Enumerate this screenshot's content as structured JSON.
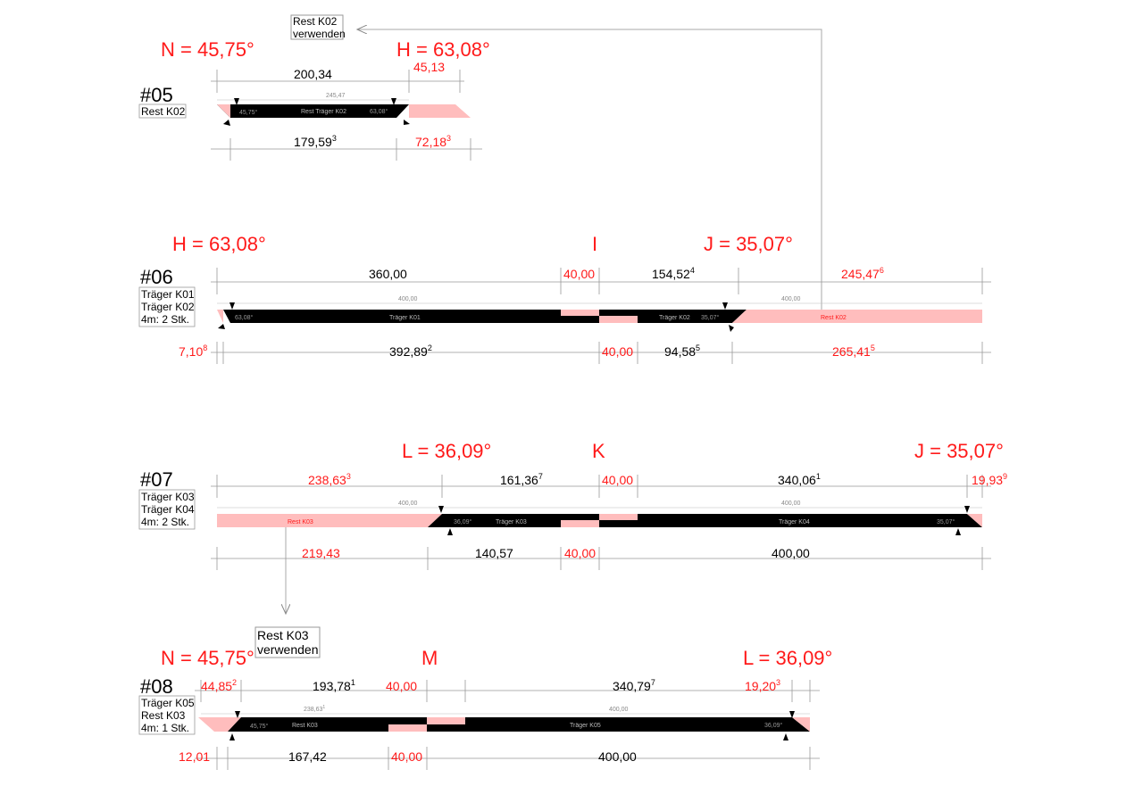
{
  "colors": {
    "red": "#ff1a1a",
    "pink": "#ffbdbd",
    "black": "#000000",
    "grey": "#999999"
  },
  "notes": {
    "k02_line1": "Rest K02",
    "k02_line2": "verwenden",
    "k03_line1": "Rest K03",
    "k03_line2": "verwenden"
  },
  "s05": {
    "num": "#05",
    "labels": [
      "Rest K02"
    ],
    "angle_n": "N = 45,75°",
    "angle_h": "H = 63,08°",
    "top": {
      "d1": "200,34",
      "d2": "45,13"
    },
    "bottom": {
      "d1": "179,59",
      "d1s": "3",
      "d2": "72,18",
      "d2s": "3"
    },
    "bar": {
      "len": "245,47",
      "name": "Rest Träger K02",
      "a_left": "45,75°",
      "a_right": "63,08°"
    }
  },
  "s06": {
    "num": "#06",
    "labels": [
      "Träger K01",
      "Träger K02",
      "4m: 2 Stk."
    ],
    "angle_h": "H = 63,08°",
    "marker_i": "I",
    "angle_j": "J = 35,07°",
    "top": {
      "d1": "360,00",
      "d2": "40,00",
      "d3": "154,52",
      "d3s": "4",
      "d4": "245,47",
      "d4s": "6"
    },
    "bottom": {
      "d0": "7,10",
      "d0s": "8",
      "d1": "392,89",
      "d1s": "2",
      "d2": "40,00",
      "d3": "94,58",
      "d3s": "5",
      "d4": "265,41",
      "d4s": "5"
    },
    "bars": {
      "len1": "400,00",
      "len2": "400,00",
      "name1": "Träger K01",
      "name2": "Träger K02",
      "name3": "Rest K02",
      "a_left": "63,08°",
      "a_right": "35,07°"
    }
  },
  "s07": {
    "num": "#07",
    "labels": [
      "Träger K03",
      "Träger K04",
      "4m: 2 Stk."
    ],
    "angle_l": "L = 36,09°",
    "marker_k": "K",
    "angle_j": "J = 35,07°",
    "top": {
      "d1": "238,63",
      "d1s": "3",
      "d2": "161,36",
      "d2s": "7",
      "d3": "40,00",
      "d4": "340,06",
      "d4s": "1",
      "d5": "19,93",
      "d5s": "9"
    },
    "bottom": {
      "d1": "219,43",
      "d2": "140,57",
      "d3": "40,00",
      "d4": "400,00"
    },
    "bars": {
      "len1": "400,00",
      "len2": "400,00",
      "name1": "Rest K03",
      "name2": "Träger K03",
      "name3": "Träger K04",
      "a_left": "36,09°",
      "a_right": "35,07°"
    }
  },
  "s08": {
    "num": "#08",
    "labels": [
      "Träger K05",
      "Rest K03",
      "4m: 1 Stk."
    ],
    "angle_n": "N = 45,75°",
    "marker_m": "M",
    "angle_l": "L = 36,09°",
    "top": {
      "d1": "44,85",
      "d1s": "2",
      "d2": "193,78",
      "d2s": "1",
      "d3": "40,00",
      "d4": "340,79",
      "d4s": "7",
      "d5": "19,20",
      "d5s": "3"
    },
    "bottom": {
      "d1": "12,01",
      "d2": "167,42",
      "d3": "40,00",
      "d4": "400,00"
    },
    "bars": {
      "len1": "238,63",
      "len1s": "1",
      "len2": "400,00",
      "name1": "Rest K03",
      "name2": "Träger K05",
      "a_left": "45,75°",
      "a_right": "36,09°"
    }
  }
}
